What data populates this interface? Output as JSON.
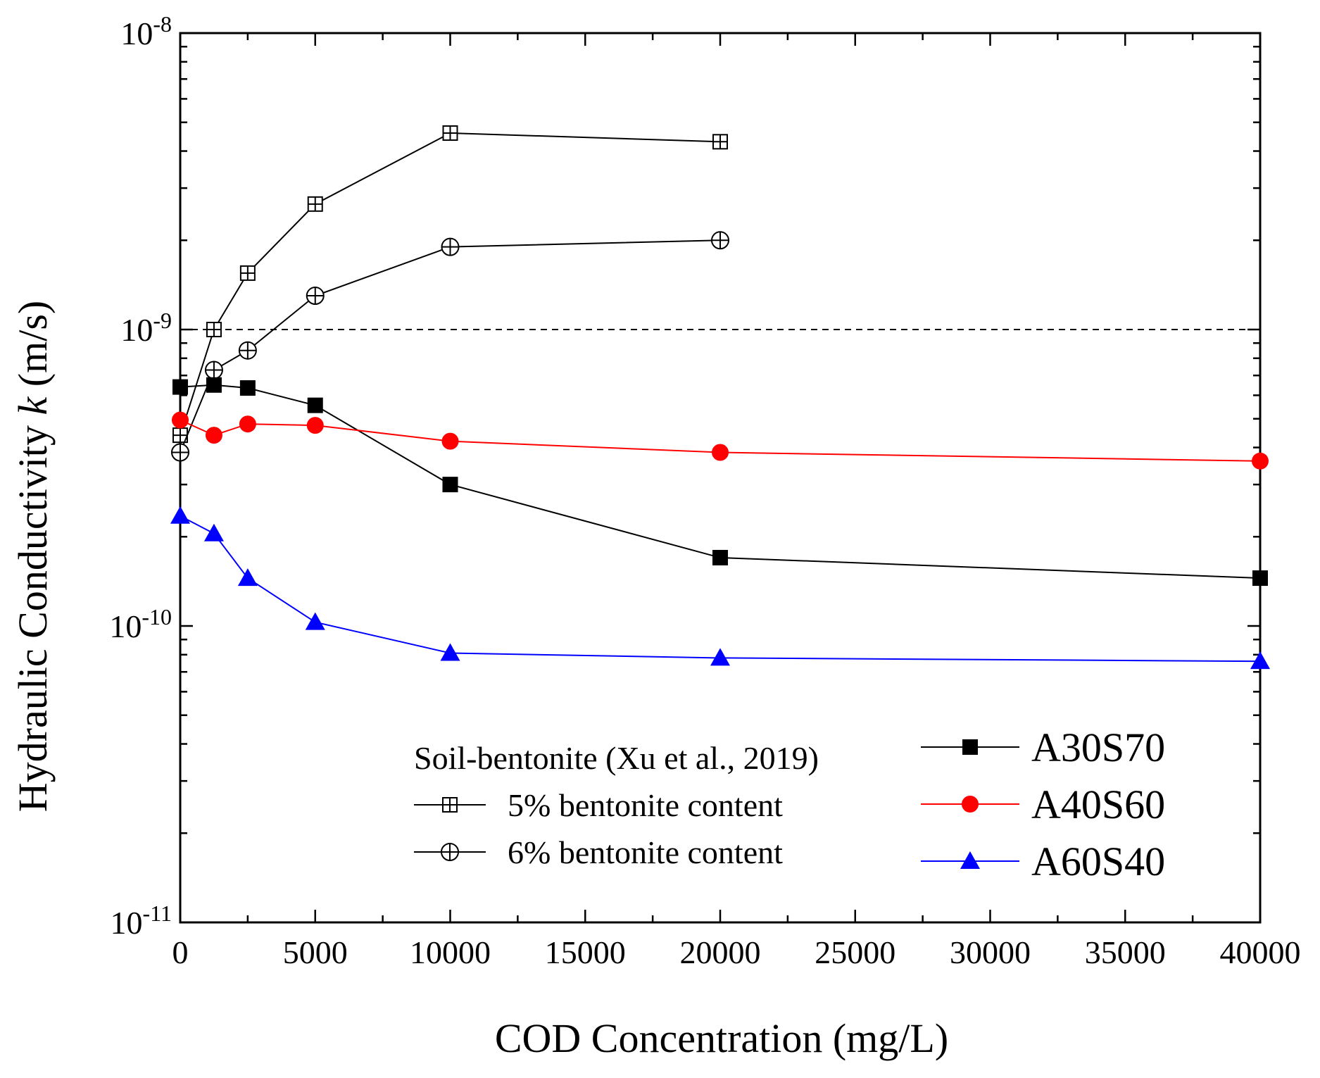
{
  "chart_data": {
    "type": "line",
    "xlabel": "COD Concentration (mg/L)",
    "ylabel_prefix": "Hydraulic Conductivity ",
    "ylabel_var": "k",
    "ylabel_suffix": " (m/s)",
    "xlim": [
      0,
      40000
    ],
    "ylim": [
      1e-11,
      1e-08
    ],
    "yscale": "log",
    "x_ticks": [
      0,
      5000,
      10000,
      15000,
      20000,
      25000,
      30000,
      35000,
      40000
    ],
    "x_tick_labels": [
      "0",
      "5000",
      "10000",
      "15000",
      "20000",
      "25000",
      "30000",
      "35000",
      "40000"
    ],
    "y_ticks": [
      {
        "value": 1e-11,
        "base": "10",
        "exp": "-11"
      },
      {
        "value": 1e-10,
        "base": "10",
        "exp": "-10"
      },
      {
        "value": 1e-09,
        "base": "10",
        "exp": "-9"
      },
      {
        "value": 1e-08,
        "base": "10",
        "exp": "-8"
      }
    ],
    "reference_line": {
      "y": 1e-09,
      "style": "dashed"
    },
    "series": [
      {
        "name": "A30S70",
        "color": "#000000",
        "marker": "square-filled",
        "x": [
          0,
          1250,
          2500,
          5000,
          10000,
          20000,
          40000
        ],
        "y": [
          6.4e-10,
          6.5e-10,
          6.35e-10,
          5.55e-10,
          3e-10,
          1.7e-10,
          1.45e-10
        ]
      },
      {
        "name": "A40S60",
        "color": "#ff0000",
        "marker": "circle-filled",
        "x": [
          0,
          1250,
          2500,
          5000,
          10000,
          20000,
          40000
        ],
        "y": [
          4.95e-10,
          4.4e-10,
          4.8e-10,
          4.75e-10,
          4.2e-10,
          3.85e-10,
          3.6e-10
        ]
      },
      {
        "name": "A60S40",
        "color": "#0000ff",
        "marker": "triangle-filled",
        "x": [
          0,
          1250,
          2500,
          5000,
          10000,
          20000,
          40000
        ],
        "y": [
          2.35e-10,
          2.05e-10,
          1.45e-10,
          1.03e-10,
          8.1e-11,
          7.8e-11,
          7.6e-11
        ]
      },
      {
        "name": "5% bentonite content",
        "color": "#000000",
        "marker": "square-plus",
        "x": [
          0,
          1250,
          2500,
          5000,
          10000,
          20000
        ],
        "y": [
          4.4e-10,
          1e-09,
          1.55e-09,
          2.65e-09,
          4.6e-09,
          4.3e-09
        ]
      },
      {
        "name": "6% bentonite content",
        "color": "#000000",
        "marker": "circle-plus",
        "x": [
          0,
          1250,
          2500,
          5000,
          10000,
          20000
        ],
        "y": [
          3.85e-10,
          7.3e-10,
          8.5e-10,
          1.3e-09,
          1.9e-09,
          2e-09
        ]
      }
    ],
    "legend_ref_title": "Soil-bentonite (Xu et al., 2019)"
  }
}
